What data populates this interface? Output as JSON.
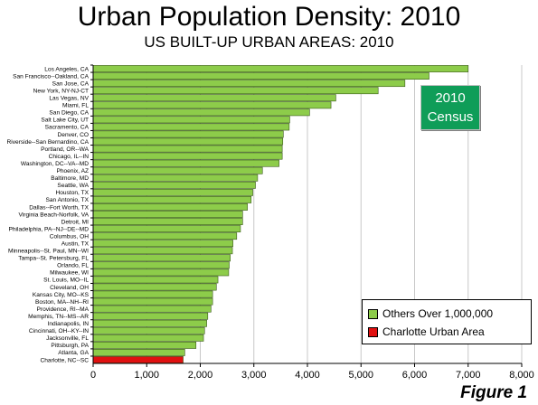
{
  "title": "Urban Population Density: 2010",
  "subtitle": "US BUILT-UP URBAN AREAS: 2010",
  "figure_label": "Figure 1",
  "badge": {
    "line1": "2010",
    "line2": "Census"
  },
  "legend": {
    "others_label": "Others Over 1,000,000",
    "charlotte_label": "Charlotte Urban Area"
  },
  "colors": {
    "others": "#8dcc4a",
    "charlotte": "#e01010",
    "badge": "#0f9d58",
    "bar_border": "#3a5a1a"
  },
  "chart_data": {
    "type": "bar",
    "orientation": "horizontal",
    "title": "Urban Population Density: 2010",
    "subtitle": "US BUILT-UP URBAN AREAS: 2010",
    "xlabel": "",
    "ylabel": "",
    "xlim": [
      0,
      8000
    ],
    "xticks": [
      0,
      1000,
      2000,
      3000,
      4000,
      5000,
      6000,
      7000,
      8000
    ],
    "xtick_labels": [
      "0",
      "1,000",
      "2,000",
      "3,000",
      "4,000",
      "5,000",
      "6,000",
      "7,000",
      "8,000"
    ],
    "grid": "vertical",
    "legend_position": "bottom-right",
    "categories": [
      "Los Angeles, CA",
      "San Francisco--Oakland, CA",
      "San Jose, CA",
      "New York, NY-NJ-CT",
      "Las Vegas, NV",
      "Miami, FL",
      "San Diego, CA",
      "Salt Lake City, UT",
      "Sacramento, CA",
      "Denver, CO",
      "Riverside--San Bernardino, CA",
      "Portland, OR--WA",
      "Chicago, IL--IN",
      "Washington, DC--VA--MD",
      "Phoenix, AZ",
      "Baltimore, MD",
      "Seattle, WA",
      "Houston, TX",
      "San Antonio, TX",
      "Dallas--Fort Worth, TX",
      "Virginia Beach-Norfolk, VA",
      "Detroit, MI",
      "Philadelphia, PA--NJ--DE--MD",
      "Columbus, OH",
      "Austin, TX",
      "Minneapolis--St. Paul, MN--WI",
      "Tampa--St. Petersburg, FL",
      "Orlando, FL",
      "Milwaukee, WI",
      "St. Louis, MO--IL",
      "Cleveland, OH",
      "Kansas City, MO--KS",
      "Boston, MA--NH--RI",
      "Providence, RI--MA",
      "Memphis, TN--MS--AR",
      "Indianapolis, IN",
      "Cincinnati, OH--KY--IN",
      "Jacksonville, FL",
      "Pittsburgh, PA",
      "Atlanta, GA",
      "Charlotte, NC--SC"
    ],
    "series": [
      {
        "name": "Others Over 1,000,000",
        "values": [
          7000,
          6270,
          5820,
          5320,
          4530,
          4440,
          4040,
          3670,
          3660,
          3550,
          3540,
          3530,
          3530,
          3470,
          3160,
          3070,
          3030,
          2980,
          2950,
          2880,
          2790,
          2790,
          2750,
          2680,
          2610,
          2600,
          2560,
          2540,
          2530,
          2330,
          2300,
          2230,
          2230,
          2200,
          2140,
          2120,
          2080,
          2060,
          1920,
          1710,
          null
        ]
      },
      {
        "name": "Charlotte Urban Area",
        "values": [
          null,
          null,
          null,
          null,
          null,
          null,
          null,
          null,
          null,
          null,
          null,
          null,
          null,
          null,
          null,
          null,
          null,
          null,
          null,
          null,
          null,
          null,
          null,
          null,
          null,
          null,
          null,
          null,
          null,
          null,
          null,
          null,
          null,
          null,
          null,
          null,
          null,
          null,
          null,
          null,
          1680
        ]
      }
    ]
  }
}
